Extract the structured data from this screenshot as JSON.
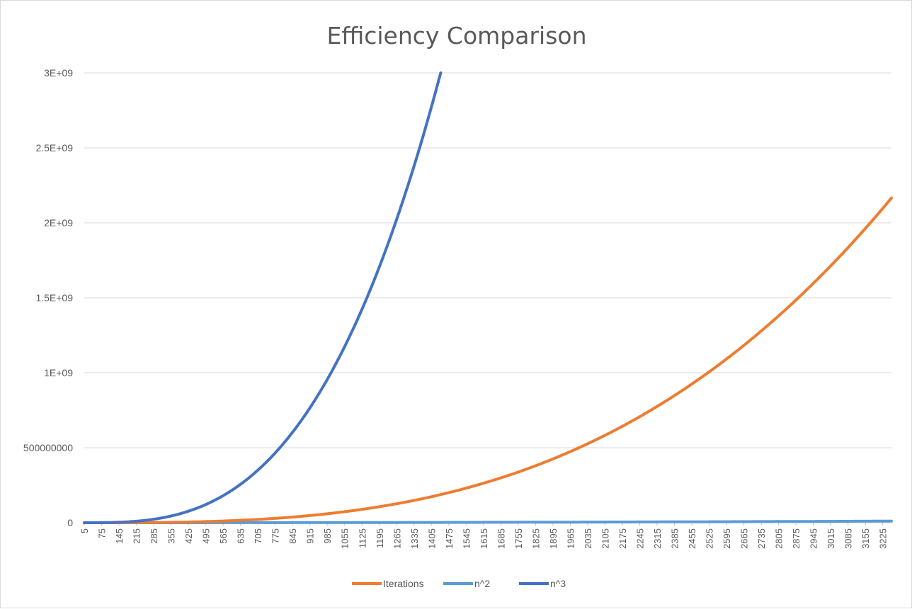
{
  "chart_data": {
    "type": "line",
    "title": "Efficiency Comparison",
    "xlabel": "",
    "ylabel": "",
    "x_range": [
      5,
      3260
    ],
    "x_step": 5,
    "x_tick_labels": [
      "5",
      "75",
      "145",
      "215",
      "285",
      "355",
      "425",
      "495",
      "565",
      "635",
      "705",
      "775",
      "845",
      "915",
      "985",
      "1055",
      "1125",
      "1195",
      "1265",
      "1335",
      "1405",
      "1475",
      "1545",
      "1615",
      "1685",
      "1755",
      "1825",
      "1895",
      "1965",
      "2035",
      "2105",
      "2175",
      "2245",
      "2315",
      "2385",
      "2455",
      "2525",
      "2595",
      "2665",
      "2735",
      "2805",
      "2875",
      "2945",
      "3015",
      "3085",
      "3155",
      "3225"
    ],
    "ylim": [
      0,
      3000000000
    ],
    "y_tick_values": [
      0,
      500000000,
      1000000000,
      1500000000,
      2000000000,
      2500000000,
      3000000000
    ],
    "y_tick_labels": [
      "0",
      "500000000",
      "1E+09",
      "1.5E+09",
      "2E+09",
      "2.5E+09",
      "3E+09"
    ],
    "grid": true,
    "legend_position": "bottom",
    "series": [
      {
        "name": "Iterations",
        "color": "#ED7D31",
        "formula": "n^3/16",
        "approx_values": {
          "1000": 62500000,
          "2000": 500000000,
          "3260": 2165000000
        }
      },
      {
        "name": "n^2",
        "color": "#5B9BD5",
        "formula": "n^2",
        "approx_values": {
          "1000": 1000000,
          "2000": 4000000,
          "3260": 10600000
        }
      },
      {
        "name": "n^3",
        "color": "#4472C4",
        "formula": "n^3",
        "approx_values": {
          "500": 125000000,
          "1000": 1000000000,
          "1442": 3000000000
        }
      }
    ]
  }
}
